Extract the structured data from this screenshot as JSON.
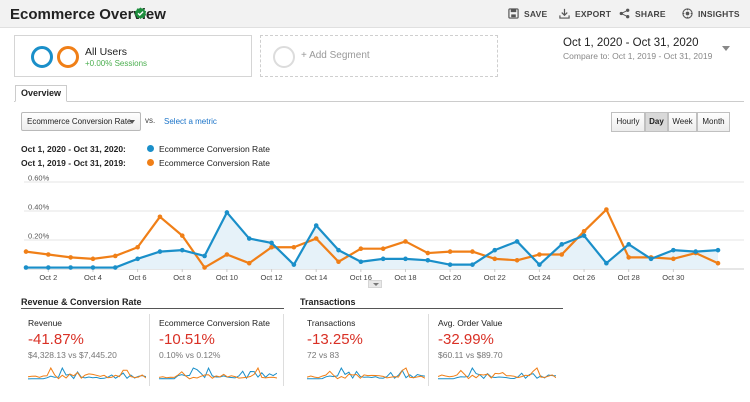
{
  "header": {
    "title": "Ecommerce Overview",
    "actions": [
      {
        "label": "SAVE",
        "icon": "save-icon"
      },
      {
        "label": "EXPORT",
        "icon": "export-icon"
      },
      {
        "label": "SHARE",
        "icon": "share-icon"
      },
      {
        "label": "INSIGHTS",
        "icon": "insights-icon"
      }
    ]
  },
  "segments": {
    "all_users_label": "All Users",
    "all_users_sub": "+0.00% Sessions",
    "add_segment_label": "+ Add Segment"
  },
  "date_range": {
    "main": "Oct 1, 2020 - Oct 31, 2020",
    "compare": "Compare to: Oct 1, 2019 - Oct 31, 2019"
  },
  "tabs": {
    "overview": "Overview"
  },
  "controls": {
    "metric": "Ecommerce Conversion Rate",
    "vs": "vs.",
    "select_metric": "Select a metric",
    "granularity": [
      {
        "label": "Hourly",
        "active": false
      },
      {
        "label": "Day",
        "active": true
      },
      {
        "label": "Week",
        "active": false
      },
      {
        "label": "Month",
        "active": false
      }
    ]
  },
  "legend": [
    {
      "period": "Oct 1, 2020 - Oct 31, 2020:",
      "name": "Ecommerce Conversion Rate",
      "color": "#1a8fc9"
    },
    {
      "period": "Oct 1, 2019 - Oct 31, 2019:",
      "name": "Ecommerce Conversion Rate",
      "color": "#f07f17"
    }
  ],
  "chart_data": {
    "type": "line",
    "y_ticks": [
      "0.60%",
      "0.40%",
      "0.20%"
    ],
    "ylim": [
      0,
      0.6
    ],
    "x_labels": [
      "Oct 2",
      "Oct 4",
      "Oct 6",
      "Oct 8",
      "Oct 10",
      "Oct 12",
      "Oct 14",
      "Oct 16",
      "Oct 18",
      "Oct 20",
      "Oct 22",
      "Oct 24",
      "Oct 26",
      "Oct 28",
      "Oct 30"
    ],
    "grid": true,
    "series": [
      {
        "name": "Oct 1, 2020 - Oct 31, 2020",
        "color": "#1a8fc9",
        "filled": true,
        "values": [
          0.01,
          0.01,
          0.01,
          0.01,
          0.01,
          0.07,
          0.12,
          0.13,
          0.09,
          0.39,
          0.21,
          0.18,
          0.03,
          0.3,
          0.13,
          0.05,
          0.07,
          0.07,
          0.06,
          0.03,
          0.03,
          0.13,
          0.19,
          0.03,
          0.17,
          0.23,
          0.04,
          0.17,
          0.07,
          0.13,
          0.12,
          0.13
        ]
      },
      {
        "name": "Oct 1, 2019 - Oct 31, 2019",
        "color": "#f07f17",
        "filled": false,
        "values": [
          0.12,
          0.1,
          0.08,
          0.07,
          0.09,
          0.15,
          0.36,
          0.23,
          0.01,
          0.1,
          0.04,
          0.15,
          0.15,
          0.21,
          0.05,
          0.14,
          0.14,
          0.19,
          0.11,
          0.12,
          0.12,
          0.07,
          0.06,
          0.1,
          0.1,
          0.26,
          0.41,
          0.08,
          0.08,
          0.07,
          0.11,
          0.04
        ]
      }
    ]
  },
  "summary": {
    "groups": [
      {
        "title": "Revenue & Conversion Rate"
      },
      {
        "title": "Transactions"
      }
    ],
    "cards": [
      {
        "label": "Revenue",
        "value": "-41.87%",
        "sub": "$4,328.13 vs $7,445.20"
      },
      {
        "label": "Ecommerce Conversion Rate",
        "value": "-10.51%",
        "sub": "0.10% vs 0.12%"
      },
      {
        "label": "Transactions",
        "value": "-13.25%",
        "sub": "72 vs 83"
      },
      {
        "label": "Avg. Order Value",
        "value": "-32.99%",
        "sub": "$60.11 vs $89.70"
      }
    ]
  }
}
